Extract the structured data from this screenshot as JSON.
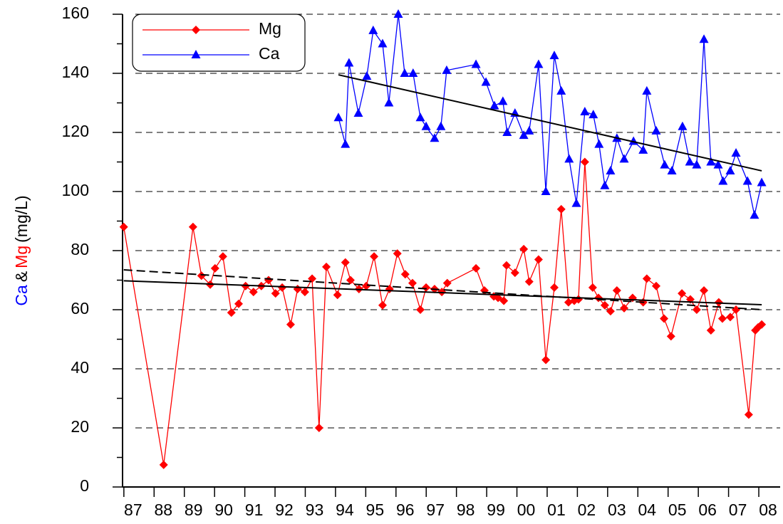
{
  "chart_data": {
    "type": "line",
    "y_label": [
      {
        "text": "Ca",
        "color": "#0000ff"
      },
      {
        "text": "&",
        "color": "#000000"
      },
      {
        "text": "Mg",
        "color": "#ff0000"
      },
      {
        "text": "(mg/L)",
        "color": "#000000"
      }
    ],
    "xlim": [
      1986.65,
      2008.4
    ],
    "xticks": [
      {
        "value": 1987,
        "label": "87"
      },
      {
        "value": 1988,
        "label": "88"
      },
      {
        "value": 1989,
        "label": "89"
      },
      {
        "value": 1990,
        "label": "90"
      },
      {
        "value": 1991,
        "label": "91"
      },
      {
        "value": 1992,
        "label": "92"
      },
      {
        "value": 1993,
        "label": "93"
      },
      {
        "value": 1994,
        "label": "94"
      },
      {
        "value": 1995,
        "label": "95"
      },
      {
        "value": 1996,
        "label": "96"
      },
      {
        "value": 1997,
        "label": "97"
      },
      {
        "value": 1998,
        "label": "98"
      },
      {
        "value": 1999,
        "label": "99"
      },
      {
        "value": 2000,
        "label": "00"
      },
      {
        "value": 2001,
        "label": "01"
      },
      {
        "value": 2002,
        "label": "02"
      },
      {
        "value": 2003,
        "label": "03"
      },
      {
        "value": 2004,
        "label": "04"
      },
      {
        "value": 2005,
        "label": "05"
      },
      {
        "value": 2006,
        "label": "06"
      },
      {
        "value": 2007,
        "label": "07"
      },
      {
        "value": 2008,
        "label": "08"
      }
    ],
    "ylim": [
      0,
      160
    ],
    "yticks": [
      0,
      20,
      40,
      60,
      80,
      100,
      120,
      140,
      160
    ],
    "grid": true,
    "legend": "upper left",
    "series": [
      {
        "name": "Mg",
        "color": "#ff0000",
        "marker": "diamond",
        "x": [
          1986.69,
          1988.01,
          1988.98,
          1989.26,
          1989.55,
          1989.71,
          1989.97,
          1990.25,
          1990.49,
          1990.72,
          1990.98,
          1991.24,
          1991.48,
          1991.71,
          1991.93,
          1992.21,
          1992.44,
          1992.68,
          1992.92,
          1993.15,
          1993.39,
          1993.76,
          1994.02,
          1994.19,
          1994.47,
          1994.71,
          1994.97,
          1995.25,
          1995.48,
          1995.74,
          1996.0,
          1996.24,
          1996.5,
          1996.69,
          1996.97,
          1997.21,
          1997.39,
          1998.34,
          1998.62,
          1998.93,
          1999.07,
          1999.26,
          1999.35,
          1999.63,
          1999.92,
          2000.1,
          2000.41,
          2000.65,
          2000.93,
          2001.16,
          2001.4,
          2001.59,
          2001.73,
          2001.94,
          2002.2,
          2002.39,
          2002.6,
          2002.79,
          2003.0,
          2003.24,
          2003.52,
          2003.87,
          2003.99,
          2004.3,
          2004.56,
          2004.79,
          2005.15,
          2005.43,
          2005.64,
          2005.88,
          2006.11,
          2006.37,
          2006.49,
          2006.75,
          2006.94,
          2007.36,
          2007.58,
          2007.67,
          2007.79
        ],
        "values": [
          88,
          7.5,
          88,
          71.5,
          68.5,
          74,
          78,
          59,
          62,
          68,
          66,
          68,
          70,
          65.5,
          67.5,
          55,
          67,
          66,
          70.5,
          20,
          74.5,
          65,
          76,
          70,
          67,
          68,
          78,
          61.5,
          67,
          79,
          72,
          69,
          60,
          67.5,
          67,
          66,
          69,
          74,
          66.5,
          64.5,
          64,
          63,
          75,
          72.5,
          80.5,
          69.5,
          77,
          43,
          67.5,
          94,
          62.5,
          63,
          63.5,
          110,
          67.5,
          64,
          61.5,
          59.5,
          66.5,
          60.5,
          64,
          62.5,
          70.5,
          68,
          57,
          51,
          65.5,
          63.5,
          60,
          66.5,
          53,
          62.5,
          57,
          57.5,
          60,
          24.5,
          53,
          54,
          55
        ]
      },
      {
        "name": "Ca",
        "color": "#0000ff",
        "marker": "triangle",
        "x": [
          1993.79,
          1994.02,
          1994.14,
          1994.45,
          1994.73,
          1994.94,
          1995.25,
          1995.46,
          1995.77,
          1995.98,
          1996.26,
          1996.5,
          1996.69,
          1996.97,
          1997.18,
          1997.37,
          1998.34,
          1998.67,
          1998.95,
          1999.23,
          1999.37,
          1999.63,
          1999.92,
          2000.1,
          2000.41,
          2000.65,
          2000.93,
          2001.16,
          2001.42,
          2001.66,
          2001.94,
          2002.22,
          2002.41,
          2002.6,
          2002.79,
          2003.0,
          2003.24,
          2003.55,
          2003.87,
          2003.99,
          2004.3,
          2004.58,
          2004.82,
          2005.17,
          2005.41,
          2005.64,
          2005.88,
          2006.11,
          2006.35,
          2006.51,
          2006.75,
          2006.94,
          2007.32,
          2007.55,
          2007.79
        ],
        "values": [
          125,
          116,
          143.5,
          126.5,
          139,
          154.5,
          150,
          130,
          160,
          140,
          140,
          125,
          122,
          118,
          122,
          141,
          143,
          137,
          129,
          130.5,
          120,
          126.5,
          119,
          120.5,
          143,
          100,
          146,
          134,
          111,
          96,
          127,
          126,
          116,
          102,
          107,
          118,
          111,
          117,
          114,
          134,
          120.5,
          109,
          107,
          122,
          110,
          109,
          151.5,
          110,
          109,
          103.5,
          107,
          113,
          103.5,
          92,
          103
        ]
      }
    ],
    "trend_lines": [
      {
        "color": "#000000",
        "dashed": false,
        "x": [
          1993.79,
          2007.79
        ],
        "values": [
          139.5,
          107
        ]
      },
      {
        "color": "#000000",
        "dashed": false,
        "x": [
          1986.69,
          2007.79
        ],
        "values": [
          69.8,
          61.7
        ]
      },
      {
        "color": "#000000",
        "dashed": true,
        "x": [
          1986.69,
          2007.79
        ],
        "values": [
          73.5,
          60
        ]
      }
    ]
  }
}
